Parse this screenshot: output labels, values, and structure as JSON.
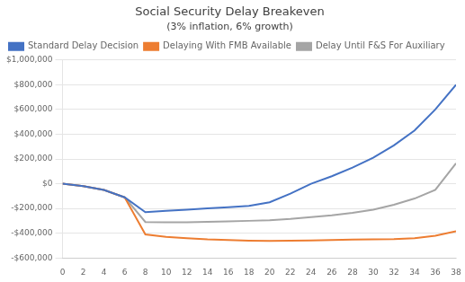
{
  "chart_data": {
    "type": "line",
    "title": "Social Security Delay Breakeven",
    "subtitle": "(3% inflation, 6% growth)",
    "x": [
      0,
      2,
      4,
      6,
      8,
      10,
      12,
      14,
      16,
      18,
      20,
      22,
      24,
      26,
      28,
      30,
      32,
      34,
      36,
      38
    ],
    "series": [
      {
        "name": "Standard Delay Decision",
        "color": "#4472C4",
        "values": [
          0,
          -20000,
          -50000,
          -110000,
          -230000,
          -220000,
          -210000,
          -200000,
          -190000,
          -180000,
          -150000,
          -80000,
          0,
          60000,
          130000,
          210000,
          310000,
          430000,
          600000,
          800000
        ]
      },
      {
        "name": "Delaying With FMB Available",
        "color": "#ED7D31",
        "values": [
          0,
          -20000,
          -50000,
          -110000,
          -410000,
          -430000,
          -440000,
          -450000,
          -455000,
          -460000,
          -462000,
          -460000,
          -458000,
          -455000,
          -452000,
          -450000,
          -448000,
          -440000,
          -420000,
          -385000
        ]
      },
      {
        "name": "Delay Until F&S For Auxiliary",
        "color": "#A5A5A5",
        "values": [
          0,
          -20000,
          -50000,
          -110000,
          -310000,
          -312000,
          -312000,
          -308000,
          -305000,
          -300000,
          -295000,
          -285000,
          -270000,
          -255000,
          -235000,
          -210000,
          -170000,
          -120000,
          -50000,
          165000
        ]
      }
    ],
    "xlim": [
      0,
      38
    ],
    "xticks": [
      0,
      2,
      4,
      6,
      8,
      10,
      12,
      14,
      16,
      18,
      20,
      22,
      24,
      26,
      28,
      30,
      32,
      34,
      36,
      38
    ],
    "ylim": [
      -600000,
      1000000
    ],
    "yticks": [
      {
        "value": -600000,
        "label": "-$600,000"
      },
      {
        "value": -400000,
        "label": "-$400,000"
      },
      {
        "value": -200000,
        "label": "-$200,000"
      },
      {
        "value": 0,
        "label": "$0"
      },
      {
        "value": 200000,
        "label": "$200,000"
      },
      {
        "value": 400000,
        "label": "$400,000"
      },
      {
        "value": 600000,
        "label": "$600,000"
      },
      {
        "value": 800000,
        "label": "$800,000"
      },
      {
        "value": 1000000,
        "label": "$1,000,000"
      }
    ],
    "grid": "y",
    "legend": "upper left"
  }
}
